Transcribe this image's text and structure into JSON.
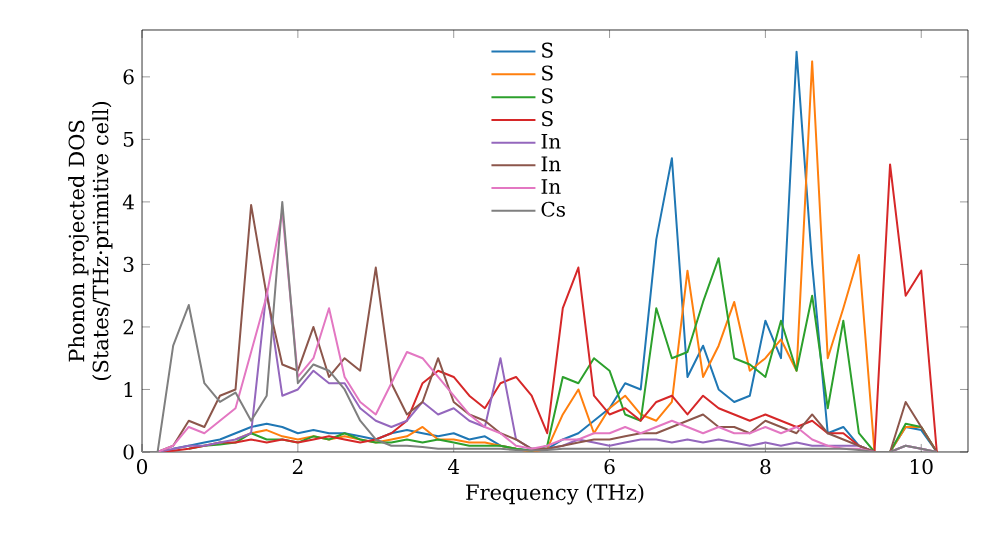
{
  "chart_data": {
    "type": "line",
    "xlabel": "Frequency (THz)",
    "ylabel": "Phonon projected DOS (States/THz·primitive cell)",
    "x": [
      0,
      0.2,
      0.4,
      0.6,
      0.8,
      1.0,
      1.2,
      1.4,
      1.6,
      1.8,
      2.0,
      2.2,
      2.4,
      2.6,
      2.8,
      3.0,
      3.2,
      3.4,
      3.6,
      3.8,
      4.0,
      4.2,
      4.4,
      4.6,
      4.8,
      5.0,
      5.2,
      5.4,
      5.6,
      5.8,
      6.0,
      6.2,
      6.4,
      6.6,
      6.8,
      7.0,
      7.2,
      7.4,
      7.6,
      7.8,
      8.0,
      8.2,
      8.4,
      8.6,
      8.8,
      9.0,
      9.2,
      9.4,
      9.6,
      9.8,
      10.0,
      10.2
    ],
    "series": [
      {
        "name": "S",
        "color": "#1f77b4",
        "values": [
          null,
          null,
          0.05,
          0.1,
          0.15,
          0.2,
          0.3,
          0.4,
          0.45,
          0.4,
          0.3,
          0.35,
          0.3,
          0.3,
          0.25,
          0.2,
          0.3,
          0.35,
          0.3,
          0.25,
          0.3,
          0.2,
          0.25,
          0.1,
          0.05,
          0.02,
          0.05,
          0.2,
          0.3,
          0.5,
          0.7,
          1.1,
          1.0,
          3.4,
          4.7,
          1.2,
          1.7,
          1.0,
          0.8,
          0.9,
          2.1,
          1.5,
          6.4,
          3.0,
          0.3,
          0.4,
          0.1,
          0,
          0,
          0.4,
          0.35,
          0
        ]
      },
      {
        "name": "S",
        "color": "#ff7f0e",
        "values": [
          null,
          null,
          null,
          null,
          null,
          null,
          0.2,
          0.3,
          0.35,
          0.25,
          0.2,
          0.25,
          0.2,
          0.25,
          0.2,
          0.15,
          0.2,
          0.25,
          0.4,
          0.2,
          0.2,
          0.15,
          0.15,
          0.1,
          0.05,
          0,
          0.05,
          0.6,
          1.0,
          0.3,
          0.7,
          0.9,
          0.6,
          0.5,
          0.8,
          2.9,
          1.2,
          1.7,
          2.4,
          1.3,
          1.5,
          1.8,
          1.3,
          6.25,
          1.5,
          2.3,
          3.15,
          0,
          0,
          0.4,
          0.4,
          0
        ]
      },
      {
        "name": "S",
        "color": "#2ca02c",
        "values": [
          null,
          null,
          null,
          0.05,
          0.1,
          0.12,
          0.15,
          0.3,
          0.2,
          0.2,
          0.15,
          0.25,
          0.2,
          0.3,
          0.2,
          0.15,
          0.15,
          0.2,
          0.15,
          0.2,
          0.15,
          0.1,
          0.1,
          0.1,
          0.05,
          0.02,
          0.1,
          1.2,
          1.1,
          1.5,
          1.3,
          0.6,
          0.5,
          2.3,
          1.5,
          1.6,
          2.4,
          3.1,
          1.5,
          1.4,
          1.2,
          2.1,
          1.3,
          2.5,
          0.7,
          2.1,
          0.3,
          0,
          0,
          0.45,
          0.4,
          0
        ]
      },
      {
        "name": "S",
        "color": "#d62728",
        "values": [
          0,
          0,
          0.02,
          0.05,
          0.1,
          0.15,
          0.15,
          0.2,
          0.15,
          0.2,
          0.15,
          0.2,
          0.25,
          0.2,
          0.15,
          0.2,
          0.3,
          0.5,
          1.1,
          1.3,
          1.2,
          0.9,
          0.7,
          1.1,
          1.2,
          0.9,
          0.3,
          2.3,
          2.95,
          0.9,
          0.6,
          0.7,
          0.5,
          0.8,
          0.9,
          0.6,
          0.9,
          0.7,
          0.6,
          0.5,
          0.6,
          0.5,
          0.4,
          0.5,
          0.3,
          0.3,
          0.1,
          0,
          4.6,
          2.5,
          2.9,
          0
        ]
      },
      {
        "name": "In",
        "color": "#9467bd",
        "values": [
          0,
          0,
          0.05,
          0.1,
          0.1,
          0.15,
          0.2,
          0.3,
          2.6,
          0.9,
          1.0,
          1.3,
          1.1,
          1.1,
          0.7,
          0.5,
          0.4,
          0.5,
          0.8,
          0.6,
          0.7,
          0.5,
          0.4,
          1.5,
          0.2,
          0.05,
          0.05,
          0.1,
          0.2,
          0.15,
          0.1,
          0.15,
          0.2,
          0.2,
          0.15,
          0.2,
          0.15,
          0.2,
          0.15,
          0.1,
          0.15,
          0.1,
          0.15,
          0.1,
          0.1,
          0.1,
          0.1,
          0,
          0,
          0.1,
          0.05,
          0
        ]
      },
      {
        "name": "In",
        "color": "#8c564b",
        "values": [
          0,
          0,
          0.1,
          0.5,
          0.4,
          0.9,
          1.0,
          3.95,
          2.5,
          1.4,
          1.3,
          2.0,
          1.2,
          1.5,
          1.3,
          2.95,
          1.1,
          0.6,
          0.8,
          1.5,
          0.8,
          0.6,
          0.5,
          0.3,
          0.2,
          0.05,
          0.05,
          0.1,
          0.15,
          0.2,
          0.2,
          0.25,
          0.3,
          0.3,
          0.4,
          0.5,
          0.6,
          0.4,
          0.4,
          0.3,
          0.5,
          0.4,
          0.3,
          0.6,
          0.3,
          0.2,
          0.1,
          0,
          0,
          0.8,
          0.4,
          0
        ]
      },
      {
        "name": "In",
        "color": "#e377c2",
        "values": [
          0,
          0,
          0.1,
          0.4,
          0.3,
          0.5,
          0.7,
          1.6,
          2.5,
          3.85,
          1.2,
          1.5,
          2.3,
          1.2,
          0.8,
          0.6,
          1.1,
          1.6,
          1.5,
          1.2,
          0.9,
          0.6,
          0.4,
          0.3,
          0.1,
          0.05,
          0.1,
          0.2,
          0.2,
          0.3,
          0.3,
          0.4,
          0.3,
          0.4,
          0.5,
          0.4,
          0.3,
          0.4,
          0.3,
          0.3,
          0.4,
          0.3,
          0.4,
          0.2,
          0.1,
          0.05,
          0.05,
          0,
          0,
          0.1,
          0.05,
          0
        ]
      },
      {
        "name": "Cs",
        "color": "#7f7f7f",
        "values": [
          0,
          0,
          1.7,
          2.35,
          1.1,
          0.8,
          0.95,
          0.5,
          0.9,
          4.0,
          1.1,
          1.4,
          1.3,
          1.0,
          0.5,
          0.2,
          0.1,
          0.1,
          0.08,
          0.05,
          0.05,
          0.05,
          0.05,
          0.05,
          0.03,
          0.02,
          0.03,
          0.05,
          0.05,
          0.05,
          0.05,
          0.05,
          0.05,
          0.05,
          0.05,
          0.05,
          0.05,
          0.05,
          0.05,
          0.05,
          0.05,
          0.05,
          0.05,
          0.05,
          0.05,
          0.05,
          0.03,
          0,
          0,
          0.1,
          0.05,
          0
        ]
      }
    ],
    "xlim": [
      0,
      10.6
    ],
    "ylim": [
      0,
      6.75
    ],
    "xticks": [
      0,
      2,
      4,
      6,
      8,
      10
    ],
    "yticks": [
      0,
      1,
      2,
      3,
      4,
      5,
      6
    ],
    "legend": "top"
  }
}
